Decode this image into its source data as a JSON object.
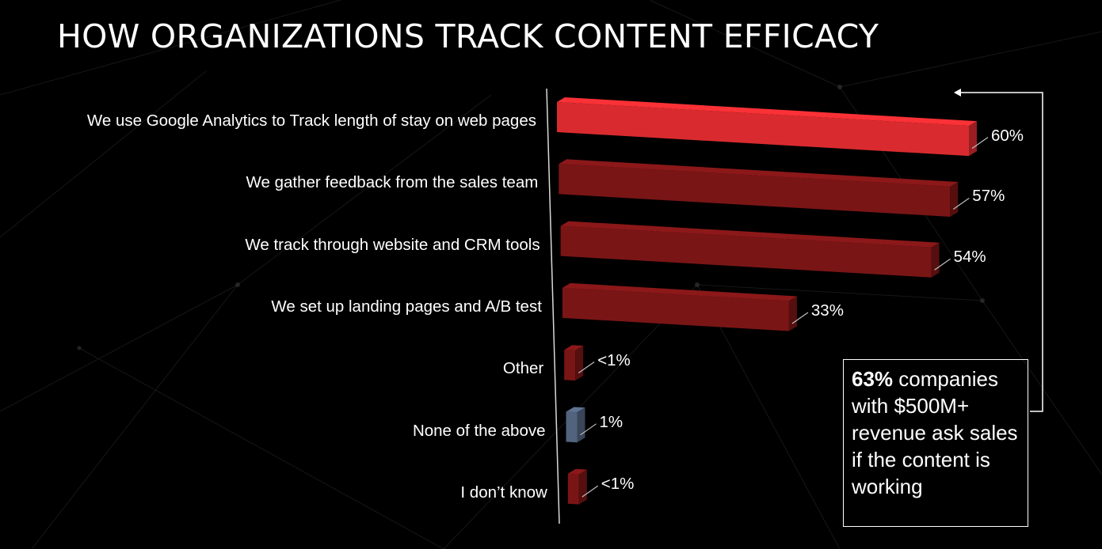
{
  "title": "HOW ORGANIZATIONS TRACK CONTENT EFFICACY",
  "chart_data": {
    "type": "bar",
    "orientation": "horizontal",
    "categories": [
      "We use Google Analytics to Track length of stay on web pages",
      "We gather feedback from the sales team",
      "We track through website and CRM tools",
      "We set up landing pages and A/B test",
      "Other",
      "None of the above",
      "I don’t know"
    ],
    "values": [
      60,
      57,
      54,
      33,
      0.5,
      1,
      0.5
    ],
    "value_labels": [
      "60%",
      "57%",
      "54%",
      "33%",
      "<1%",
      "1%",
      "<1%"
    ],
    "colors": [
      "#d92b2f",
      "#7a1516",
      "#7a1516",
      "#7a1516",
      "#7a1516",
      "#52637e",
      "#7a1516"
    ],
    "highlight_color": "#d92b2f",
    "xlim": [
      0,
      60
    ],
    "grid": false,
    "legend": "none"
  },
  "callout": {
    "highlight": "63%",
    "text": " companies with $500M+ revenue ask sales if the content is working"
  }
}
